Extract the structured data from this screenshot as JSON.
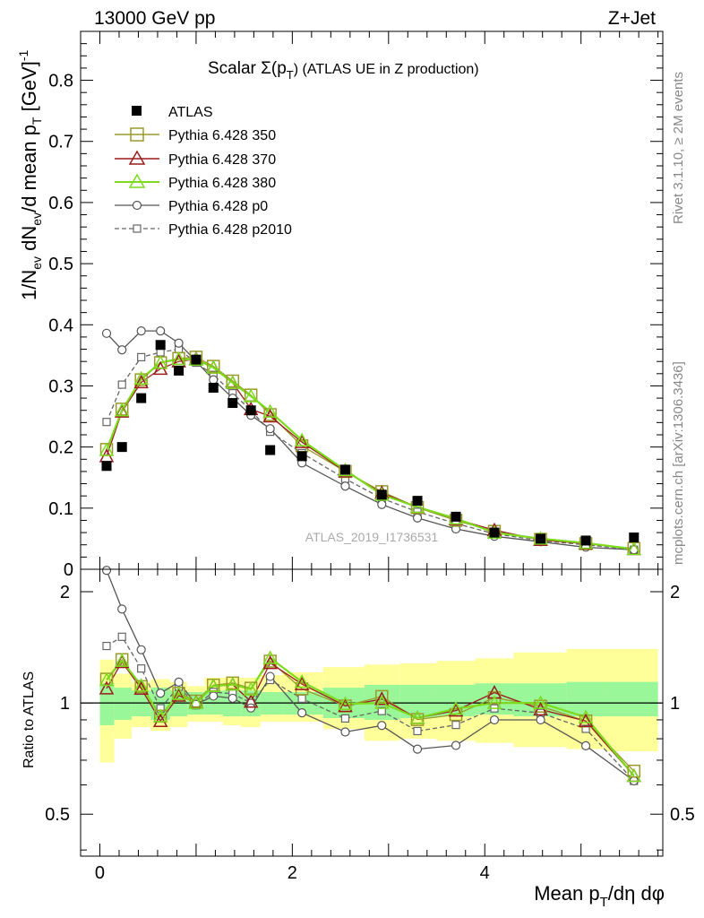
{
  "header": {
    "left": "13000 GeV pp",
    "right": "Z+Jet"
  },
  "side_labels": {
    "rivet": "Rivet 3.1.10, ≥ 2M events",
    "mcplots": "mcplots.cern.ch [arXiv:1306.3436]"
  },
  "chart_data": {
    "type": "line",
    "title": "Scalar Σ(pT) (ATLAS UE in Z production)",
    "title_parts": {
      "main": "Scalar Σ(p",
      "sub": "T",
      "tail": ") (ATLAS UE in Z production)"
    },
    "watermark": "ATLAS_2019_I1736531",
    "xlabel": "Mean pT/dη dφ",
    "xlabel_parts": {
      "main": "Mean p",
      "sub": "T",
      "tail": "/dη dφ"
    },
    "ylabel": "1/Nev dNev/d mean pT [GeV]-1",
    "ylabel_parts": {
      "a": "1/N",
      "b": "ev",
      "c": " dN",
      "d": "ev",
      "e": "/d mean p",
      "f": "T",
      "g": " [GeV]",
      "h": "-1"
    },
    "ratio_ylabel": "Ratio to ATLAS",
    "xlim": [
      -0.2,
      5.85
    ],
    "ylim": [
      0,
      0.88
    ],
    "ratio_ylim": [
      0.385,
      2.3
    ],
    "log_ratio": true,
    "x_ticks": [
      "0",
      "2",
      "4"
    ],
    "y_ticks": [
      "0",
      "0.1",
      "0.2",
      "0.3",
      "0.4",
      "0.5",
      "0.6",
      "0.7",
      "0.8"
    ],
    "ratio_ticks": [
      "0.5",
      "1",
      "2"
    ],
    "legend_position": "top-left",
    "x": [
      0.07,
      0.23,
      0.43,
      0.63,
      0.82,
      1.0,
      1.18,
      1.38,
      1.57,
      1.77,
      2.1,
      2.55,
      2.93,
      3.3,
      3.7,
      4.1,
      4.58,
      5.05,
      5.55
    ],
    "atlas": [
      0.169,
      0.2,
      0.28,
      0.367,
      0.325,
      0.343,
      0.297,
      0.272,
      0.26,
      0.195,
      0.185,
      0.163,
      0.122,
      0.112,
      0.086,
      0.06,
      0.05,
      0.047,
      0.052
    ],
    "series": [
      {
        "name": "Pythia 6.428 350",
        "marker": "square",
        "color": "#9a9a2a",
        "dash": false,
        "values": [
          0.196,
          0.262,
          0.31,
          0.338,
          0.345,
          0.347,
          0.332,
          0.308,
          0.285,
          0.253,
          0.202,
          0.16,
          0.127,
          0.101,
          0.08,
          0.062,
          0.049,
          0.042,
          0.034
        ]
      },
      {
        "name": "Pythia 6.428 370",
        "marker": "triangle",
        "color": "#9b1c1c",
        "dash": false,
        "values": [
          0.185,
          0.258,
          0.306,
          0.328,
          0.34,
          0.344,
          0.33,
          0.305,
          0.262,
          0.25,
          0.208,
          0.16,
          0.125,
          0.102,
          0.082,
          0.064,
          0.048,
          0.042,
          0.033
        ]
      },
      {
        "name": "Pythia 6.428 380",
        "marker": "triangle",
        "color": "#7cdb1e",
        "dash": false,
        "values": [
          0.195,
          0.26,
          0.312,
          0.338,
          0.344,
          0.343,
          0.33,
          0.305,
          0.283,
          0.258,
          0.211,
          0.162,
          0.122,
          0.102,
          0.083,
          0.06,
          0.05,
          0.043,
          0.033
        ]
      },
      {
        "name": "Pythia 6.428 p0",
        "marker": "circle",
        "color": "#555555",
        "dash": false,
        "values": [
          0.386,
          0.359,
          0.39,
          0.39,
          0.37,
          0.34,
          0.31,
          0.28,
          0.252,
          0.23,
          0.174,
          0.136,
          0.106,
          0.084,
          0.066,
          0.054,
          0.045,
          0.036,
          0.032
        ]
      },
      {
        "name": "Pythia 6.428 p2010",
        "marker": "square-small",
        "color": "#666666",
        "dash": true,
        "values": [
          0.241,
          0.302,
          0.347,
          0.355,
          0.36,
          0.338,
          0.318,
          0.288,
          0.26,
          0.225,
          0.19,
          0.148,
          0.116,
          0.094,
          0.075,
          0.058,
          0.047,
          0.04,
          0.032
        ]
      }
    ],
    "band_edges": [
      0.0,
      0.15,
      0.33,
      0.53,
      0.73,
      0.91,
      1.09,
      1.28,
      1.47,
      1.67,
      1.9,
      2.32,
      2.75,
      3.12,
      3.5,
      3.9,
      4.3,
      4.85,
      5.25,
      5.8
    ],
    "band_green": [
      [
        0.87,
        1.13
      ],
      [
        0.9,
        1.1
      ],
      [
        0.92,
        1.08
      ],
      [
        0.9,
        1.1
      ],
      [
        0.92,
        1.08
      ],
      [
        0.93,
        1.07
      ],
      [
        0.93,
        1.08
      ],
      [
        0.92,
        1.08
      ],
      [
        0.92,
        1.08
      ],
      [
        0.93,
        1.07
      ],
      [
        0.93,
        1.07
      ],
      [
        0.91,
        1.1
      ],
      [
        0.9,
        1.12
      ],
      [
        0.91,
        1.12
      ],
      [
        0.92,
        1.12
      ],
      [
        0.93,
        1.13
      ],
      [
        0.92,
        1.13
      ],
      [
        0.92,
        1.14
      ],
      [
        0.92,
        1.14
      ]
    ],
    "band_yellow": [
      [
        0.69,
        1.31
      ],
      [
        0.8,
        1.2
      ],
      [
        0.86,
        1.14
      ],
      [
        0.84,
        1.16
      ],
      [
        0.86,
        1.14
      ],
      [
        0.89,
        1.11
      ],
      [
        0.89,
        1.17
      ],
      [
        0.87,
        1.17
      ],
      [
        0.86,
        1.17
      ],
      [
        0.89,
        1.19
      ],
      [
        0.89,
        1.21
      ],
      [
        0.85,
        1.25
      ],
      [
        0.79,
        1.27
      ],
      [
        0.8,
        1.28
      ],
      [
        0.79,
        1.3
      ],
      [
        0.78,
        1.32
      ],
      [
        0.76,
        1.37
      ],
      [
        0.75,
        1.4
      ],
      [
        0.74,
        1.4
      ]
    ]
  }
}
